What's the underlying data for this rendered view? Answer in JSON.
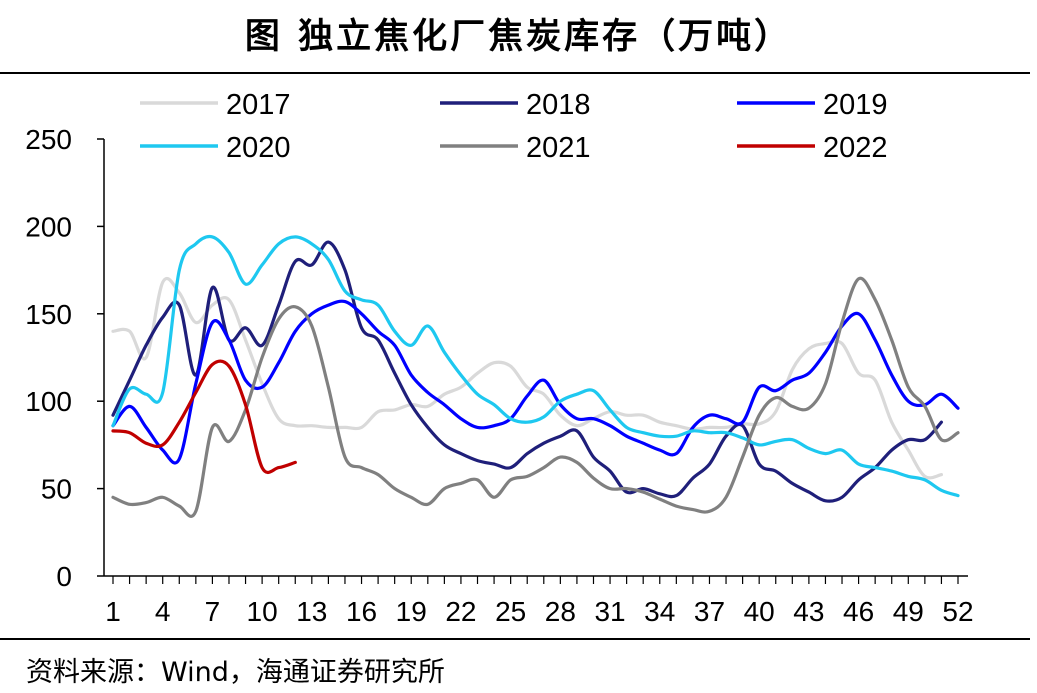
{
  "title": "图  独立焦化厂焦炭库存（万吨）",
  "source": "资料来源：Wind，海通证券研究所",
  "chart_data": {
    "type": "line",
    "title": "独立焦化厂焦炭库存（万吨）",
    "xlabel": "",
    "ylabel": "",
    "ylim": [
      0,
      250
    ],
    "xlim": [
      1,
      52
    ],
    "y_ticks": [
      0,
      50,
      100,
      150,
      200,
      250
    ],
    "x_ticks": [
      1,
      4,
      7,
      10,
      13,
      16,
      19,
      22,
      25,
      28,
      31,
      34,
      37,
      40,
      43,
      46,
      49,
      52
    ],
    "grid": false,
    "legend_position": "top",
    "series": [
      {
        "name": "2017",
        "color": "#d9d9d9",
        "x": [
          1,
          2,
          3,
          4,
          5,
          6,
          7,
          8,
          9,
          10,
          11,
          12,
          13,
          14,
          15,
          16,
          17,
          18,
          19,
          20,
          21,
          22,
          23,
          24,
          25,
          26,
          27,
          28,
          29,
          30,
          31,
          32,
          33,
          34,
          35,
          36,
          37,
          38,
          39,
          40,
          41,
          42,
          43,
          44,
          45,
          46,
          47,
          48,
          49,
          50,
          51
        ],
        "values": [
          140,
          140,
          125,
          168,
          162,
          145,
          155,
          158,
          135,
          110,
          90,
          86,
          86,
          85,
          85,
          85,
          94,
          95,
          98,
          97,
          104,
          108,
          116,
          122,
          120,
          108,
          104,
          92,
          86,
          90,
          94,
          92,
          92,
          88,
          86,
          84,
          85,
          85,
          87,
          87,
          94,
          118,
          130,
          133,
          133,
          116,
          112,
          88,
          72,
          57,
          58
        ]
      },
      {
        "name": "2018",
        "color": "#1f1f7a",
        "x": [
          1,
          2,
          3,
          4,
          5,
          6,
          7,
          8,
          9,
          10,
          11,
          12,
          13,
          14,
          15,
          16,
          17,
          18,
          19,
          20,
          21,
          22,
          23,
          24,
          25,
          26,
          27,
          28,
          29,
          30,
          31,
          32,
          33,
          34,
          35,
          36,
          37,
          38,
          39,
          40,
          41,
          42,
          43,
          44,
          45,
          46,
          47,
          48,
          49,
          50,
          51
        ],
        "values": [
          92,
          112,
          132,
          148,
          155,
          115,
          165,
          135,
          142,
          132,
          155,
          180,
          178,
          191,
          175,
          142,
          135,
          116,
          98,
          85,
          75,
          70,
          66,
          64,
          62,
          70,
          76,
          80,
          83,
          68,
          60,
          48,
          50,
          47,
          46,
          56,
          64,
          80,
          86,
          64,
          60,
          53,
          48,
          43,
          45,
          55,
          62,
          72,
          78,
          78,
          88
        ]
      },
      {
        "name": "2019",
        "color": "#0000ff",
        "x": [
          1,
          2,
          3,
          4,
          5,
          6,
          7,
          8,
          9,
          10,
          11,
          12,
          13,
          14,
          15,
          16,
          17,
          18,
          19,
          20,
          21,
          22,
          23,
          24,
          25,
          26,
          27,
          28,
          29,
          30,
          31,
          32,
          33,
          34,
          35,
          36,
          37,
          38,
          39,
          40,
          41,
          42,
          43,
          44,
          45,
          46,
          47,
          48,
          49,
          50,
          51,
          52
        ],
        "values": [
          86,
          97,
          85,
          72,
          67,
          110,
          145,
          135,
          112,
          108,
          122,
          140,
          150,
          155,
          157,
          150,
          140,
          132,
          115,
          105,
          98,
          90,
          85,
          86,
          90,
          103,
          112,
          98,
          90,
          90,
          86,
          80,
          76,
          72,
          70,
          85,
          92,
          90,
          88,
          108,
          106,
          112,
          116,
          128,
          143,
          150,
          135,
          115,
          100,
          98,
          104,
          96
        ]
      },
      {
        "name": "2020",
        "color": "#1ec8f0",
        "x": [
          1,
          2,
          3,
          4,
          5,
          6,
          7,
          8,
          9,
          10,
          11,
          12,
          13,
          14,
          15,
          16,
          17,
          18,
          19,
          20,
          21,
          22,
          23,
          24,
          25,
          26,
          27,
          28,
          29,
          30,
          31,
          32,
          33,
          34,
          35,
          36,
          37,
          38,
          39,
          40,
          41,
          42,
          43,
          44,
          45,
          46,
          47,
          48,
          49,
          50,
          51,
          52
        ],
        "values": [
          86,
          107,
          104,
          105,
          175,
          190,
          194,
          185,
          167,
          178,
          190,
          194,
          190,
          181,
          163,
          158,
          155,
          140,
          132,
          143,
          128,
          115,
          104,
          98,
          90,
          88,
          91,
          100,
          104,
          106,
          95,
          85,
          82,
          80,
          80,
          83,
          82,
          82,
          79,
          75,
          77,
          78,
          73,
          70,
          72,
          64,
          62,
          60,
          57,
          55,
          49,
          46
        ]
      },
      {
        "name": "2021",
        "color": "#808080",
        "x": [
          1,
          2,
          3,
          4,
          5,
          6,
          7,
          8,
          9,
          10,
          11,
          12,
          13,
          14,
          15,
          16,
          17,
          18,
          19,
          20,
          21,
          22,
          23,
          24,
          25,
          26,
          27,
          28,
          29,
          30,
          31,
          32,
          33,
          34,
          35,
          36,
          37,
          38,
          39,
          40,
          41,
          42,
          43,
          44,
          45,
          46,
          47,
          48,
          49,
          50,
          51,
          52
        ],
        "values": [
          45,
          41,
          42,
          45,
          40,
          37,
          85,
          77,
          95,
          125,
          147,
          154,
          143,
          108,
          68,
          62,
          58,
          50,
          45,
          41,
          50,
          53,
          55,
          45,
          55,
          57,
          62,
          68,
          65,
          56,
          50,
          50,
          48,
          44,
          40,
          38,
          37,
          45,
          68,
          92,
          102,
          97,
          96,
          110,
          145,
          170,
          158,
          135,
          108,
          97,
          78,
          82
        ]
      },
      {
        "name": "2022",
        "color": "#c00000",
        "x": [
          1,
          2,
          3,
          4,
          5,
          6,
          7,
          8,
          9,
          10,
          11,
          12
        ],
        "values": [
          83,
          82,
          76,
          75,
          88,
          105,
          121,
          120,
          98,
          62,
          62,
          65
        ]
      }
    ]
  }
}
